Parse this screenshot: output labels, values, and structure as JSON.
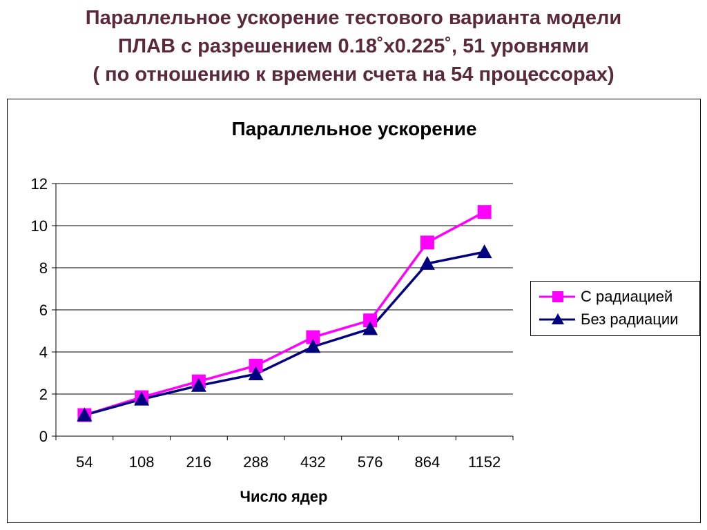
{
  "slide": {
    "title_lines": [
      "Параллельное ускорение тестового варианта модели",
      "ПЛАВ с разрешением 0.18˚x0.225˚, 51 уровнями",
      "( по отношению к времени счета на 54 процессорах)"
    ]
  },
  "chart_data": {
    "type": "line",
    "title": "Параллельное ускорение",
    "xlabel": "Число ядер",
    "ylabel": "",
    "categories": [
      "54",
      "108",
      "216",
      "288",
      "432",
      "576",
      "864",
      "1152"
    ],
    "ylim": [
      0,
      12
    ],
    "yticks": [
      0,
      2,
      4,
      6,
      8,
      10,
      12
    ],
    "grid": "horizontal",
    "legend_position": "right",
    "series": [
      {
        "name": "С радиацией",
        "marker": "square",
        "color": "#ff00ff",
        "values": [
          1.0,
          1.85,
          2.6,
          3.35,
          4.7,
          5.5,
          9.2,
          10.65
        ]
      },
      {
        "name": "Без радиации",
        "marker": "triangle",
        "color": "#000080",
        "values": [
          1.0,
          1.75,
          2.4,
          2.95,
          4.25,
          5.1,
          8.2,
          8.75
        ]
      }
    ]
  }
}
